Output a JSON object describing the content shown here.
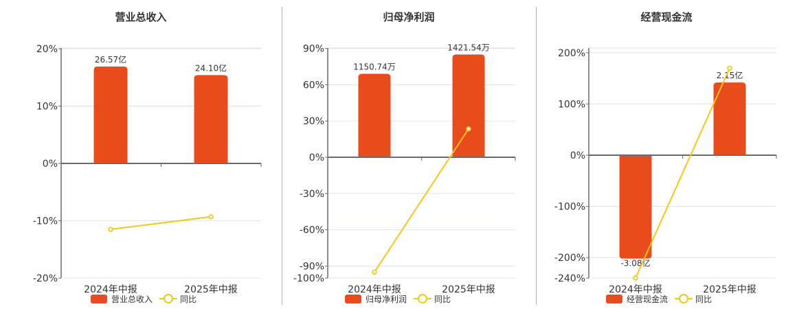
{
  "colors": {
    "bar": "#e84c1c",
    "line": "#f5c518",
    "grid": "#dde3ee",
    "axis": "#666a73"
  },
  "chart_data": [
    {
      "type": "bar",
      "title": "营业总收入",
      "categories": [
        "2024年中报",
        "2025年中报"
      ],
      "series": [
        {
          "name": "营业总收入",
          "type": "bar",
          "labels": [
            "26.57亿",
            "24.10亿"
          ],
          "values_pct_axis": [
            16.9,
            15.4
          ]
        },
        {
          "name": "同比",
          "type": "line",
          "values": [
            -11.5,
            -9.3
          ]
        }
      ],
      "y_ticks": [
        "20%",
        "10%",
        "0%",
        "-10%",
        "-20%"
      ],
      "ylim": [
        -20,
        20
      ],
      "grid": true,
      "legend_position": "bottom"
    },
    {
      "type": "bar",
      "title": "归母净利润",
      "categories": [
        "2024年中报",
        "2025年中报"
      ],
      "series": [
        {
          "name": "归母净利润",
          "type": "bar",
          "labels": [
            "1150.74万",
            "1421.54万"
          ],
          "values_pct_axis": [
            69,
            85
          ]
        },
        {
          "name": "同比",
          "type": "line",
          "values": [
            -95,
            23.5
          ]
        }
      ],
      "y_ticks": [
        "90%",
        "60%",
        "30%",
        "0%",
        "-30%",
        "-60%",
        "-90%",
        "-100%"
      ],
      "ylim": [
        -100,
        90
      ],
      "grid": true,
      "legend_position": "bottom"
    },
    {
      "type": "bar",
      "title": "经营现金流",
      "categories": [
        "2024年中报",
        "2025年中报"
      ],
      "series": [
        {
          "name": "经营现金流",
          "type": "bar",
          "labels": [
            "-3.08亿",
            "2.15亿"
          ],
          "values_pct_axis": [
            -202,
            142
          ]
        },
        {
          "name": "同比",
          "type": "line",
          "values": [
            -240,
            170
          ]
        }
      ],
      "y_ticks": [
        "200%",
        "100%",
        "0%",
        "-100%",
        "-200%",
        "-240%"
      ],
      "ylim": [
        -240,
        210
      ],
      "grid": true,
      "legend_position": "bottom"
    }
  ],
  "panels": [
    {
      "title": "营业总收入",
      "cat1": "2024年中报",
      "cat2": "2025年中报",
      "bar_legend": "营业总收入",
      "line_legend": "同比"
    },
    {
      "title": "归母净利润",
      "cat1": "2024年中报",
      "cat2": "2025年中报",
      "bar_legend": "归母净利润",
      "line_legend": "同比"
    },
    {
      "title": "经营现金流",
      "cat1": "2024年中报",
      "cat2": "2025年中报",
      "bar_legend": "经营现金流",
      "line_legend": "同比"
    }
  ]
}
